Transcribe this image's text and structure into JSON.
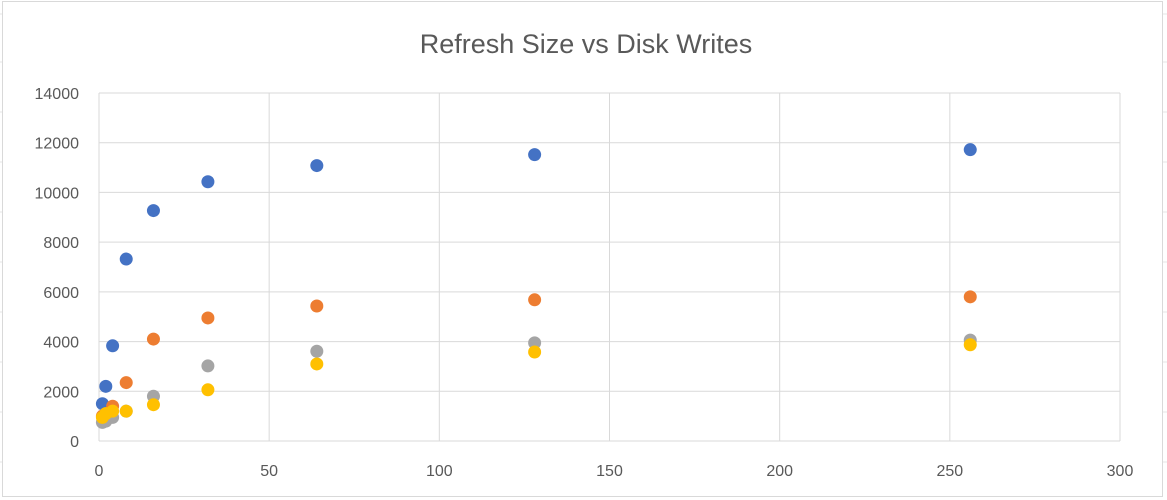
{
  "colors": {
    "series_1": "#4472C4",
    "series_2": "#ED7D31",
    "series_3": "#A5A5A5",
    "series_4": "#FFC000",
    "gridline": "#d9d9d9",
    "text": "#595959"
  },
  "chart_data": {
    "type": "scatter",
    "title": "Refresh Size vs Disk Writes",
    "xlabel": "",
    "ylabel": "",
    "xlim": [
      0,
      300
    ],
    "ylim": [
      0,
      14000
    ],
    "x_ticks": [
      0,
      50,
      100,
      150,
      200,
      250,
      300
    ],
    "y_ticks": [
      0,
      2000,
      4000,
      6000,
      8000,
      10000,
      12000,
      14000
    ],
    "x_tick_labels": [
      "0",
      "50",
      "100",
      "150",
      "200",
      "250",
      "300"
    ],
    "y_tick_labels": [
      "0",
      "2000",
      "4000",
      "6000",
      "8000",
      "10000",
      "12000",
      "14000"
    ],
    "grid": true,
    "legend": "none",
    "series": [
      {
        "color": "#4472C4",
        "points": [
          [
            1,
            1500
          ],
          [
            2,
            2200
          ],
          [
            4,
            3830
          ],
          [
            8,
            7320
          ],
          [
            16,
            9270
          ],
          [
            32,
            10430
          ],
          [
            64,
            11080
          ],
          [
            128,
            11520
          ],
          [
            256,
            11720
          ]
        ]
      },
      {
        "color": "#ED7D31",
        "points": [
          [
            1,
            1000
          ],
          [
            2,
            1100
          ],
          [
            4,
            1400
          ],
          [
            8,
            2350
          ],
          [
            16,
            4100
          ],
          [
            32,
            4950
          ],
          [
            64,
            5430
          ],
          [
            128,
            5680
          ],
          [
            256,
            5800
          ]
        ]
      },
      {
        "color": "#A5A5A5",
        "points": [
          [
            1,
            750
          ],
          [
            2,
            800
          ],
          [
            4,
            950
          ],
          [
            8,
            1200
          ],
          [
            16,
            1800
          ],
          [
            32,
            3020
          ],
          [
            64,
            3610
          ],
          [
            128,
            3950
          ],
          [
            256,
            4060
          ]
        ]
      },
      {
        "color": "#FFC000",
        "points": [
          [
            1,
            950
          ],
          [
            2,
            1100
          ],
          [
            4,
            1200
          ],
          [
            8,
            1200
          ],
          [
            16,
            1460
          ],
          [
            32,
            2060
          ],
          [
            64,
            3100
          ],
          [
            128,
            3580
          ],
          [
            256,
            3870
          ]
        ]
      }
    ]
  }
}
